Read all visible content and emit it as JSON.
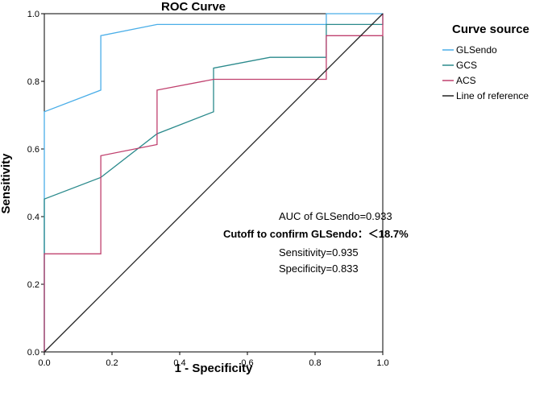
{
  "chart_data": {
    "type": "line",
    "title": "ROC Curve",
    "xlabel": "1 - Specificity",
    "ylabel": "Sensitivity",
    "xlim": [
      0,
      1
    ],
    "ylim": [
      0,
      1
    ],
    "x_ticks": [
      "0.0",
      "0.2",
      "0.4",
      "0.6",
      "0.8",
      "1.0"
    ],
    "y_ticks": [
      "0.0",
      "0.2",
      "0.4",
      "0.6",
      "0.8",
      "1.0"
    ],
    "grid": false,
    "legend": {
      "title": "Curve source",
      "position": "right"
    },
    "series": [
      {
        "name": "GLSendo",
        "color": "#4aaee8",
        "x": [
          0,
          0,
          0.167,
          0.167,
          0.333,
          0.833,
          0.833,
          1.0
        ],
        "y": [
          0,
          0.71,
          0.774,
          0.935,
          0.968,
          0.968,
          1.0,
          1.0
        ]
      },
      {
        "name": "GCS",
        "color": "#2a8a8c",
        "x": [
          0,
          0,
          0.167,
          0.333,
          0.5,
          0.5,
          0.667,
          0.833,
          0.833,
          1.0,
          1.0
        ],
        "y": [
          0,
          0.452,
          0.516,
          0.645,
          0.71,
          0.839,
          0.871,
          0.871,
          0.968,
          0.968,
          1.0
        ]
      },
      {
        "name": "ACS",
        "color": "#c0406e",
        "x": [
          0,
          0,
          0.167,
          0.167,
          0.333,
          0.333,
          0.5,
          0.833,
          0.833,
          1.0,
          1.0
        ],
        "y": [
          0,
          0.29,
          0.29,
          0.58,
          0.613,
          0.774,
          0.806,
          0.806,
          0.935,
          0.935,
          1.0
        ]
      },
      {
        "name": "Line of reference",
        "color": "#222222",
        "x": [
          0,
          1
        ],
        "y": [
          0,
          1
        ]
      }
    ],
    "annotations": {
      "auc": "AUC of GLSendo=0.933",
      "cutoff": "Cutoff to confirm GLSendo：＜18.7%",
      "sensitivity": "Sensitivity=0.935",
      "specificity": "Specificity=0.833"
    }
  }
}
